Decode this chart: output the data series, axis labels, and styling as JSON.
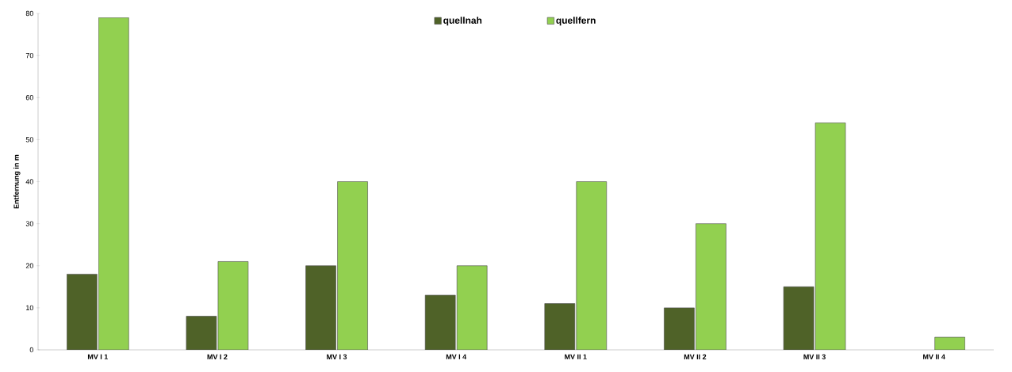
{
  "chart_data": {
    "type": "bar",
    "ylabel": "Entfernung in m",
    "categories": [
      "MV I 1",
      "MV I 2",
      "MV I 3",
      "MV I 4",
      "MV II 1",
      "MV II 2",
      "MV II 3",
      "MV II 4"
    ],
    "series": [
      {
        "name": "quellnah",
        "color": "#4f6228",
        "values": [
          18,
          8,
          20,
          13,
          11,
          10,
          15,
          null
        ]
      },
      {
        "name": "quellfern",
        "color": "#92d050",
        "values": [
          79,
          21,
          40,
          20,
          40,
          30,
          54,
          3
        ]
      }
    ],
    "ylim": [
      0,
      80
    ],
    "yticks": [
      0,
      10,
      20,
      30,
      40,
      50,
      60,
      70,
      80
    ],
    "grid": false,
    "legend": "top"
  }
}
